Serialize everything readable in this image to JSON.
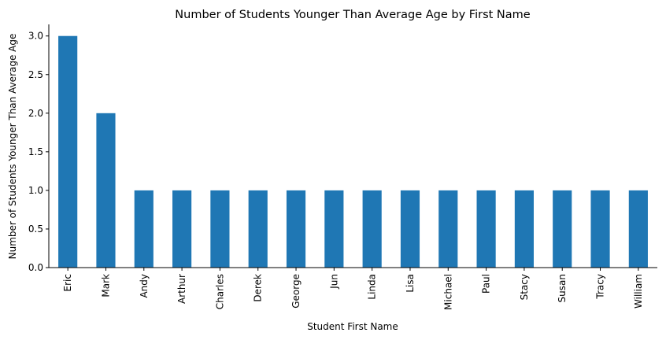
{
  "chart_data": {
    "type": "bar",
    "title": "Number of Students Younger Than Average Age by First Name",
    "xlabel": "Student First Name",
    "ylabel": "Number of Students Younger Than Average Age",
    "categories": [
      "Eric",
      "Mark",
      "Andy",
      "Arthur",
      "Charles",
      "Derek",
      "George",
      "Jun",
      "Linda",
      "Lisa",
      "Michael",
      "Paul",
      "Stacy",
      "Susan",
      "Tracy",
      "William"
    ],
    "values": [
      3,
      2,
      1,
      1,
      1,
      1,
      1,
      1,
      1,
      1,
      1,
      1,
      1,
      1,
      1,
      1
    ],
    "ylim": [
      0,
      3.15
    ],
    "yticks": [
      "0.0",
      "0.5",
      "1.0",
      "1.5",
      "2.0",
      "2.5",
      "3.0"
    ],
    "grid": false,
    "legend": "none",
    "bar_color": "#1f77b4"
  }
}
